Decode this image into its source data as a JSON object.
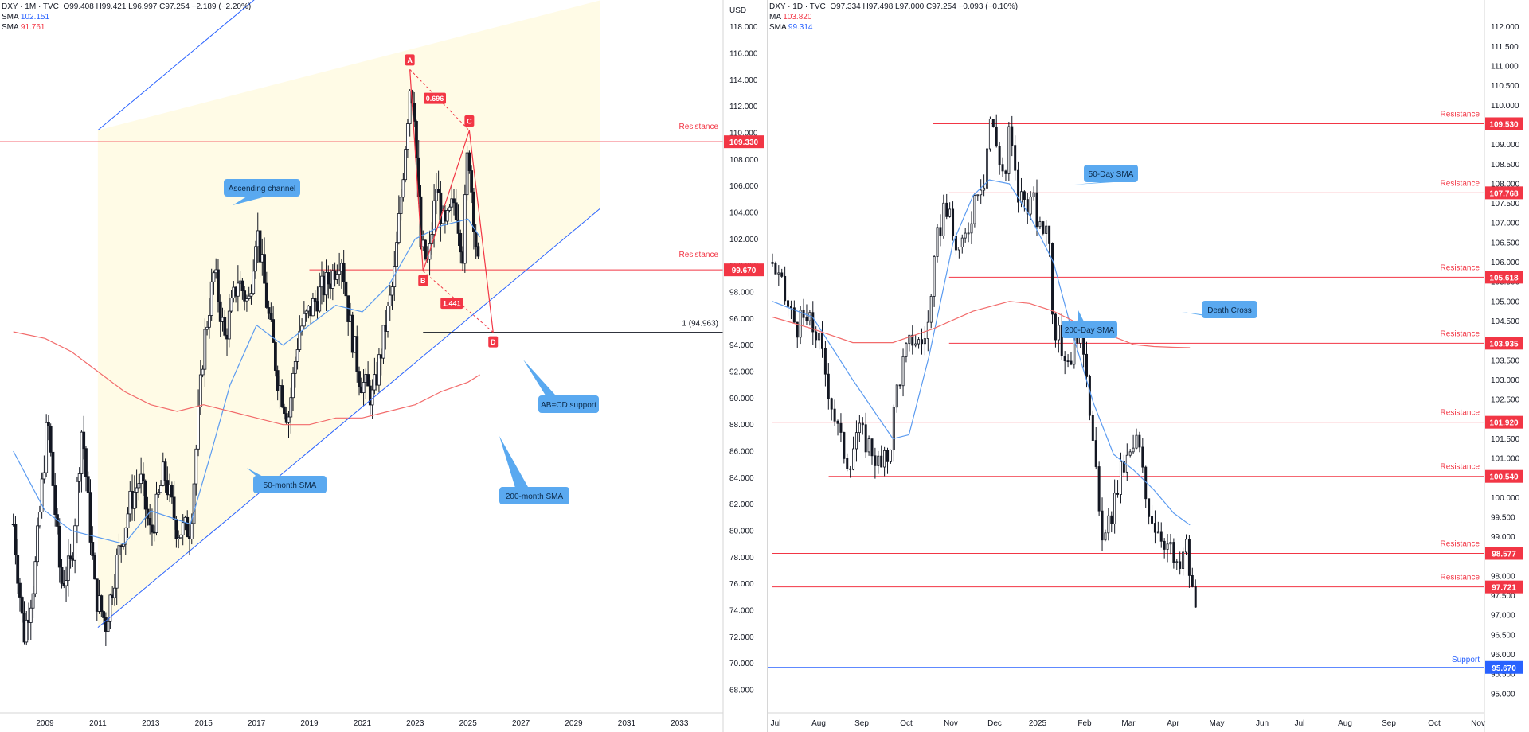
{
  "colors": {
    "resistance": "#f23645",
    "support": "#2962ff",
    "channel": "#2962ff",
    "sma_blue": "#5b9bf0",
    "sma_red": "#f26b6b",
    "callout": "#5aa9f0",
    "price_tag": "#f23645",
    "channel_fill": "#fffbe6",
    "candle": "#131722"
  },
  "chart_data": [
    {
      "type": "candlestick",
      "legend": {
        "symbol": "DXY · 1M · TVC",
        "ohlc": "O99.408 H99.421 L96.997 C97.254 −2.189 (−2.20%)",
        "sma1_label": "SMA",
        "sma1_value": "102.151",
        "sma2_label": "SMA",
        "sma2_value": "91.761"
      },
      "currency": "USD",
      "y_ticks": [
        "118.000",
        "116.000",
        "114.000",
        "112.000",
        "110.000",
        "108.000",
        "106.000",
        "104.000",
        "102.000",
        "100.000",
        "98.000",
        "96.000",
        "94.000",
        "92.000",
        "90.000",
        "88.000",
        "86.000",
        "84.000",
        "82.000",
        "80.000",
        "78.000",
        "76.000",
        "74.000",
        "72.000",
        "70.000",
        "68.000"
      ],
      "ylim": [
        66.5,
        119.3
      ],
      "x_ticks": [
        "2009",
        "2011",
        "2013",
        "2015",
        "2017",
        "2019",
        "2021",
        "2023",
        "2025",
        "2027",
        "2029",
        "2031",
        "2033"
      ],
      "price_path": [
        [
          2007.8,
          80.5
        ],
        [
          2008.2,
          72.0
        ],
        [
          2008.6,
          76.5
        ],
        [
          2009.1,
          88.5
        ],
        [
          2009.6,
          76.0
        ],
        [
          2010.0,
          77.5
        ],
        [
          2010.4,
          88.0
        ],
        [
          2010.9,
          75.2
        ],
        [
          2011.3,
          73.0
        ],
        [
          2011.7,
          77.5
        ],
        [
          2012.2,
          82.0
        ],
        [
          2012.6,
          84.0
        ],
        [
          2013.0,
          79.5
        ],
        [
          2013.5,
          84.5
        ],
        [
          2014.0,
          80.0
        ],
        [
          2014.5,
          80.2
        ],
        [
          2015.0,
          94.0
        ],
        [
          2015.4,
          99.5
        ],
        [
          2015.8,
          94.5
        ],
        [
          2016.3,
          99.0
        ],
        [
          2016.7,
          97.0
        ],
        [
          2017.0,
          103.0
        ],
        [
          2017.4,
          97.0
        ],
        [
          2017.8,
          91.5
        ],
        [
          2018.2,
          88.5
        ],
        [
          2018.6,
          95.0
        ],
        [
          2019.0,
          96.5
        ],
        [
          2019.4,
          98.0
        ],
        [
          2019.8,
          99.0
        ],
        [
          2020.2,
          101.0
        ],
        [
          2020.5,
          96.0
        ],
        [
          2020.9,
          91.5
        ],
        [
          2021.4,
          90.0
        ],
        [
          2021.8,
          94.5
        ],
        [
          2022.2,
          99.0
        ],
        [
          2022.5,
          106.0
        ],
        [
          2022.8,
          113.5
        ],
        [
          2022.95,
          112.5
        ],
        [
          2023.2,
          101.5
        ],
        [
          2023.5,
          100.0
        ],
        [
          2023.8,
          106.0
        ],
        [
          2024.1,
          102.5
        ],
        [
          2024.5,
          105.0
        ],
        [
          2024.8,
          101.0
        ],
        [
          2025.0,
          109.3
        ],
        [
          2025.2,
          104.0
        ],
        [
          2025.4,
          99.5
        ],
        [
          2025.45,
          97.25
        ]
      ],
      "resistance_levels": [
        {
          "price": 109.33,
          "label": "Resistance",
          "tag": "109.330"
        },
        {
          "price": 99.67,
          "label": "Resistance",
          "tag": "99.670"
        }
      ],
      "abcd": {
        "points": [
          {
            "label": "A",
            "year": 2022.8,
            "price": 114.78
          },
          {
            "label": "B",
            "year": 2023.3,
            "price": 99.58
          },
          {
            "label": "C",
            "year": 2025.05,
            "price": 110.18
          },
          {
            "label": "D",
            "year": 2025.95,
            "price": 94.96
          }
        ],
        "ratio_ac": "0.696",
        "ratio_bd": "1.441",
        "projection_label": "1 (94.963)",
        "projection_price": 94.963
      },
      "channel": {
        "lower_start": [
          2011.0,
          72.7
        ],
        "lower_end": [
          2030.0,
          104.3
        ],
        "upper_offset": 37.5
      },
      "annotations": {
        "channel": "Ascending channel",
        "sma50": "50-month SMA",
        "sma200": "200-month SMA",
        "abcd_support": "AB=CD support"
      }
    },
    {
      "type": "candlestick",
      "legend": {
        "symbol": "DXY · 1D · TVC",
        "ohlc": "O97.334 H97.498 L97.000 C97.254 −0.093 (−0.10%)",
        "ma_label": "MA",
        "ma_value": "103.820",
        "sma_label": "SMA",
        "sma_value": "99.314"
      },
      "y_ticks": [
        "112.000",
        "111.500",
        "111.000",
        "110.500",
        "110.000",
        "109.500",
        "109.000",
        "108.500",
        "108.000",
        "107.500",
        "107.000",
        "106.500",
        "106.000",
        "105.500",
        "105.000",
        "104.500",
        "104.000",
        "103.500",
        "103.000",
        "102.500",
        "102.000",
        "101.500",
        "101.000",
        "100.500",
        "100.000",
        "99.500",
        "99.000",
        "98.500",
        "98.000",
        "97.500",
        "97.000",
        "96.500",
        "96.000",
        "95.500",
        "95.000"
      ],
      "ylim": [
        94.55,
        112.4
      ],
      "x_ticks": [
        "Jul",
        "Aug",
        "Sep",
        "Oct",
        "Nov",
        "Dec",
        "2025",
        "Feb",
        "Mar",
        "Apr",
        "May",
        "Jun",
        "Jul",
        "Aug",
        "Sep",
        "Oct",
        "Nov"
      ],
      "price_path": [
        [
          0,
          106.0
        ],
        [
          4,
          105.4
        ],
        [
          8,
          104.8
        ],
        [
          12,
          104.4
        ],
        [
          17,
          104.5
        ],
        [
          22,
          104.2
        ],
        [
          26,
          103.3
        ],
        [
          30,
          102.3
        ],
        [
          34,
          101.4
        ],
        [
          38,
          100.9
        ],
        [
          42,
          101.7
        ],
        [
          46,
          101.5
        ],
        [
          50,
          101.2
        ],
        [
          54,
          100.7
        ],
        [
          58,
          101.1
        ],
        [
          62,
          102.8
        ],
        [
          66,
          103.6
        ],
        [
          70,
          104.1
        ],
        [
          74,
          103.9
        ],
        [
          78,
          104.5
        ],
        [
          82,
          106.5
        ],
        [
          86,
          107.6
        ],
        [
          90,
          106.6
        ],
        [
          94,
          106.2
        ],
        [
          98,
          107.0
        ],
        [
          102,
          108.0
        ],
        [
          106,
          108.2
        ],
        [
          108,
          109.8
        ],
        [
          112,
          108.9
        ],
        [
          116,
          108.1
        ],
        [
          118,
          109.4
        ],
        [
          122,
          107.7
        ],
        [
          126,
          107.6
        ],
        [
          130,
          107.5
        ],
        [
          134,
          106.6
        ],
        [
          137,
          107.3
        ],
        [
          140,
          104.5
        ],
        [
          144,
          103.8
        ],
        [
          148,
          103.5
        ],
        [
          152,
          104.3
        ],
        [
          156,
          103.7
        ],
        [
          160,
          101.2
        ],
        [
          163,
          99.4
        ],
        [
          166,
          98.9
        ],
        [
          170,
          99.8
        ],
        [
          174,
          100.7
        ],
        [
          178,
          101.0
        ],
        [
          182,
          101.5
        ],
        [
          186,
          100.0
        ],
        [
          190,
          99.4
        ],
        [
          194,
          99.1
        ],
        [
          198,
          98.7
        ],
        [
          202,
          98.0
        ],
        [
          206,
          98.8
        ],
        [
          209,
          97.6
        ],
        [
          211,
          97.25
        ]
      ],
      "resistance_levels": [
        {
          "price": 109.53,
          "label": "Resistance",
          "tag": "109.530"
        },
        {
          "price": 107.768,
          "label": "Resistance",
          "tag": "107.768"
        },
        {
          "price": 105.618,
          "label": "Resistance",
          "tag": "105.618"
        },
        {
          "price": 103.935,
          "label": "Resistance",
          "tag": "103.935"
        },
        {
          "price": 101.92,
          "label": "Resistance",
          "tag": "101.920"
        },
        {
          "price": 100.54,
          "label": "Resistance",
          "tag": "100.540"
        },
        {
          "price": 98.577,
          "label": "Resistance",
          "tag": "98.577"
        },
        {
          "price": 97.721,
          "label": "Resistance",
          "tag": "97.721"
        }
      ],
      "support_levels": [
        {
          "price": 95.67,
          "label": "Support",
          "tag": "95.670"
        }
      ],
      "sma50": [
        [
          0,
          105.0
        ],
        [
          20,
          104.6
        ],
        [
          40,
          103.0
        ],
        [
          60,
          101.5
        ],
        [
          68,
          101.6
        ],
        [
          78,
          103.6
        ],
        [
          90,
          106.5
        ],
        [
          100,
          107.7
        ],
        [
          108,
          108.1
        ],
        [
          118,
          108.0
        ],
        [
          128,
          107.2
        ],
        [
          140,
          106.0
        ],
        [
          150,
          104.1
        ],
        [
          160,
          102.4
        ],
        [
          170,
          101.1
        ],
        [
          180,
          100.7
        ],
        [
          190,
          100.2
        ],
        [
          200,
          99.6
        ],
        [
          208,
          99.3
        ]
      ],
      "sma200": [
        [
          0,
          104.6
        ],
        [
          20,
          104.3
        ],
        [
          40,
          103.95
        ],
        [
          60,
          103.95
        ],
        [
          80,
          104.3
        ],
        [
          100,
          104.75
        ],
        [
          118,
          105.0
        ],
        [
          128,
          104.95
        ],
        [
          140,
          104.75
        ],
        [
          150,
          104.5
        ],
        [
          160,
          104.3
        ],
        [
          170,
          104.1
        ],
        [
          180,
          103.9
        ],
        [
          190,
          103.85
        ],
        [
          200,
          103.83
        ],
        [
          208,
          103.82
        ]
      ],
      "annotations": {
        "sma50": "50-Day SMA",
        "sma200": "200-Day SMA",
        "death_cross": "Death Cross"
      }
    }
  ]
}
